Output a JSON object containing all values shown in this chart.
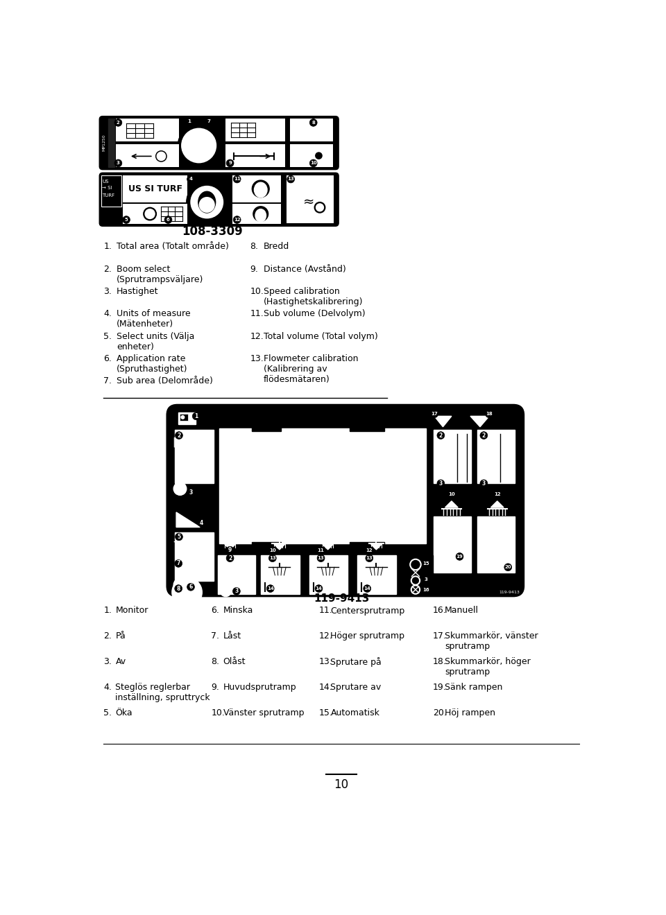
{
  "title1": "108-3309",
  "title2": "119-9413",
  "page_num": "10",
  "bg_color": "#ffffff",
  "list1": [
    [
      "1.",
      "Total area (Totalt område)",
      "8.",
      "Bredd"
    ],
    [
      "2.",
      "Boom select\n(Sprutrampsväljare)",
      "9.",
      "Distance (Avstånd)"
    ],
    [
      "3.",
      "Hastighet",
      "10.",
      "Speed calibration\n(Hastighetskalibrering)"
    ],
    [
      "4.",
      "Units of measure\n(Mätenheter)",
      "11.",
      "Sub volume (Delvolym)"
    ],
    [
      "5.",
      "Select units (Välja\nenheter)",
      "12.",
      "Total volume (Total volym)"
    ],
    [
      "6.",
      "Application rate\n(Spruthastighet)",
      "13.",
      "Flowmeter calibration\n(Kalibrering av\nflödesmätaren)"
    ],
    [
      "7.",
      "Sub area (Delområde)",
      "",
      ""
    ]
  ],
  "list2": [
    [
      "1.",
      "Monitor",
      "6.",
      "Minska",
      "11.",
      "Centersprutramp",
      "16.",
      "Manuell"
    ],
    [
      "2.",
      "På",
      "7.",
      "Låst",
      "12.",
      "Höger sprutramp",
      "17.",
      "Skummarkör, vänster\nsprutramp"
    ],
    [
      "3.",
      "Av",
      "8.",
      "Olåst",
      "13.",
      "Sprutare på",
      "18.",
      "Skummarkör, höger\nsprutramp"
    ],
    [
      "4.",
      "Steglös reglerbar\ninställning, spruttryck",
      "9.",
      "Huvudsprutramp",
      "14.",
      "Sprutare av",
      "19.",
      "Sänk rampen"
    ],
    [
      "5.",
      "Öka",
      "10.",
      "Vänster sprutramp",
      "15.",
      "Automatisk",
      "20.",
      "Höj rampen"
    ]
  ]
}
